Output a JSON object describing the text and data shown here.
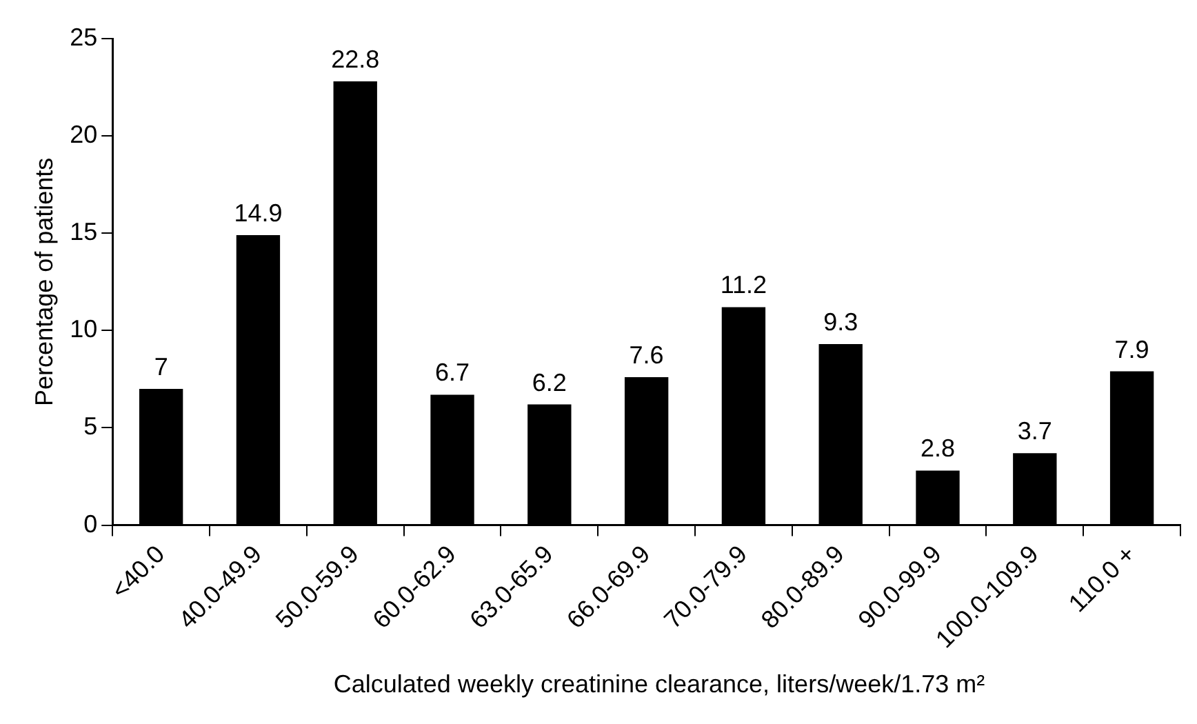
{
  "chart_data": {
    "type": "bar",
    "xlabel": "Calculated weekly creatinine clearance, liters/week/1.73 m²",
    "ylabel": "Percentage of patients",
    "categories": [
      "<40.0",
      "40.0-49.9",
      "50.0-59.9",
      "60.0-62.9",
      "63.0-65.9",
      "66.0-69.9",
      "70.0-79.9",
      "80.0-89.9",
      "90.0-99.9",
      "100.0-109.9",
      "110.0 +"
    ],
    "values": [
      7,
      14.9,
      22.8,
      6.7,
      6.2,
      7.6,
      11.2,
      9.3,
      2.8,
      3.7,
      7.9
    ],
    "color": "#000000",
    "ylim": [
      0,
      25
    ],
    "yticks": [
      0,
      5,
      10,
      15,
      20,
      25
    ],
    "grid": false,
    "legend": false,
    "data_labels": true
  }
}
